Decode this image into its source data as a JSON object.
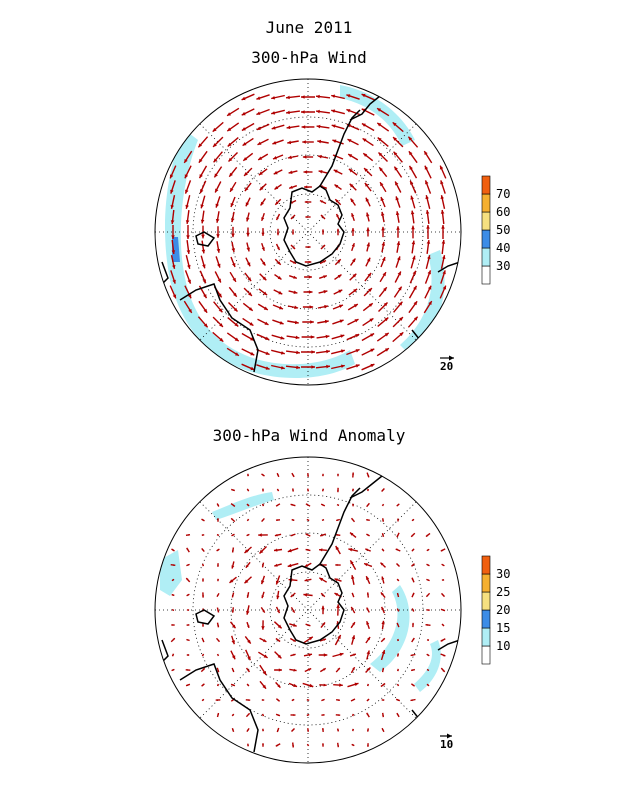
{
  "header": {
    "title": "June 2011"
  },
  "panels": [
    {
      "id": "wind",
      "title": "300-hPa Wind",
      "reference_vector": "20",
      "colorbar": {
        "levels": [
          "30",
          "40",
          "50",
          "60",
          "70"
        ],
        "colors": [
          "#ffffff",
          "#b0eef5",
          "#3c8ce6",
          "#f5e080",
          "#f5b030",
          "#f06010"
        ]
      },
      "shaded_speed": "jet-band",
      "flow": "westerly"
    },
    {
      "id": "anomaly",
      "title": "300-hPa Wind Anomaly",
      "reference_vector": "10",
      "colorbar": {
        "levels": [
          "10",
          "15",
          "20",
          "25",
          "30"
        ],
        "colors": [
          "#ffffff",
          "#b0eef5",
          "#3c8ce6",
          "#f5e080",
          "#f5b030",
          "#f06010"
        ]
      },
      "flow": "mixed"
    }
  ],
  "colors": {
    "vector": "#b00000",
    "coast": "#000000",
    "shade_light": "#b0eef5",
    "shade_blue": "#3c8ce6"
  },
  "icons": [
    "polar-stereographic-map",
    "wind-vector-arrow",
    "colorbar"
  ]
}
